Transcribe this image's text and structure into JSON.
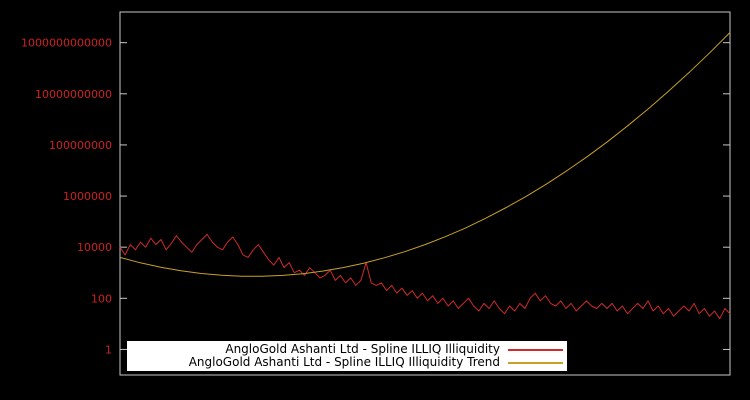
{
  "window": {
    "background": "#000000"
  },
  "chart_data": {
    "type": "line",
    "title": "",
    "xlabel": "",
    "ylabel": "",
    "y_scale": "log",
    "grid": false,
    "legend_position": "bottom-center",
    "ylim": [
      0.1,
      15850000000000
    ],
    "y_ticks": {
      "values": [
        1,
        100,
        10000,
        1000000,
        100000000,
        10000000000,
        1000000000000
      ],
      "labels": [
        "1",
        "100",
        "10000",
        "1000000",
        "100000000",
        "10000000000",
        "1000000000000"
      ]
    },
    "colors": {
      "tick_label": "#cc2222",
      "border": "#c8c8c8",
      "legend_bg": "#ffffff",
      "legend_text": "#000000"
    },
    "series": [
      {
        "name": "AngloGold Ashanti Ltd - Spline ILLIQ Illiquidity",
        "color": "#cf2a2a",
        "width": 1,
        "values": [
          10000,
          5000,
          12600,
          7900,
          15800,
          10000,
          22400,
          12600,
          20000,
          7900,
          14100,
          28200,
          15800,
          10000,
          6300,
          12600,
          20000,
          31600,
          15800,
          10000,
          7900,
          15800,
          25100,
          12600,
          5000,
          4000,
          7900,
          12600,
          6300,
          3200,
          2000,
          4000,
          1600,
          2500,
          1000,
          1260,
          790,
          1580,
          1000,
          630,
          790,
          1260,
          500,
          790,
          400,
          630,
          320,
          500,
          2500,
          400,
          320,
          400,
          200,
          320,
          160,
          250,
          130,
          200,
          100,
          160,
          79,
          126,
          63,
          100,
          50,
          79,
          40,
          63,
          100,
          50,
          32,
          63,
          40,
          79,
          40,
          25,
          50,
          32,
          63,
          40,
          100,
          158,
          79,
          126,
          63,
          50,
          79,
          40,
          63,
          32,
          50,
          79,
          50,
          40,
          63,
          40,
          63,
          32,
          50,
          25,
          40,
          63,
          40,
          79,
          32,
          50,
          25,
          40,
          20,
          32,
          50,
          32,
          63,
          25,
          40,
          20,
          32,
          16,
          40,
          25
        ]
      },
      {
        "name": "AngloGold Ashanti Ltd - Spline ILLIQ Illiquidity Trend",
        "color": "#c8a028",
        "width": 1,
        "values": [
          3981,
          2460,
          1645,
          1191,
          936,
          794,
          731,
          729,
          787,
          920,
          1167,
          1600,
          2377,
          3828,
          6668,
          12589,
          25764,
          57016,
          136773,
          355631,
          1000000,
          3048000,
          10070000,
          35970000,
          139300000,
          584800000,
          2655000000,
          13060000000,
          69660000000,
          401800000000,
          2512000000000
        ]
      }
    ]
  },
  "legend": {
    "item1": "AngloGold Ashanti Ltd - Spline ILLIQ Illiquidity",
    "item2": "AngloGold Ashanti Ltd - Spline ILLIQ Illiquidity Trend"
  }
}
